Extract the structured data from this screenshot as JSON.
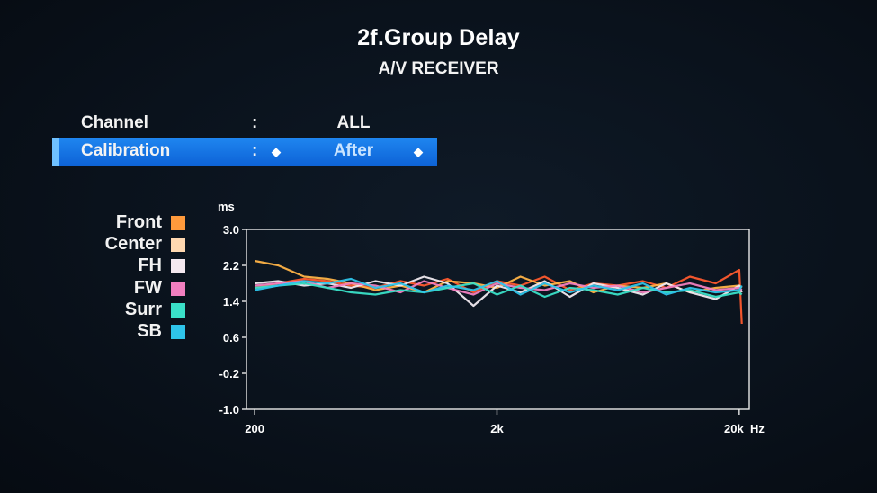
{
  "header": {
    "title": "2f.Group Delay",
    "subtitle": "A/V RECEIVER"
  },
  "settings": [
    {
      "label": "Channel",
      "colon": ":",
      "value": "ALL"
    },
    {
      "label": "Calibration",
      "colon": ":",
      "value": "After",
      "selected": true
    }
  ],
  "legend": [
    {
      "name": "Front",
      "color": "#ff9a3c"
    },
    {
      "name": "Center",
      "color": "#ffd8b0"
    },
    {
      "name": "FH",
      "color": "#f4e8ef"
    },
    {
      "name": "FW",
      "color": "#f27fc0"
    },
    {
      "name": "Surr",
      "color": "#3ae0c8"
    },
    {
      "name": "SB",
      "color": "#2ec4ea"
    }
  ],
  "chart_data": {
    "type": "line",
    "ylabel": "ms",
    "xunit": "Hz",
    "yticks": [
      "3.0",
      "2.2",
      "1.4",
      "0.6",
      "-0.2",
      "-1.0"
    ],
    "ylim": [
      -1.0,
      3.0
    ],
    "xticks": [
      "200",
      "2k",
      "20k"
    ],
    "xscale": "log",
    "xlim": [
      185,
      22000
    ],
    "x": [
      200,
      250,
      320,
      400,
      500,
      630,
      800,
      1000,
      1250,
      1600,
      2000,
      2500,
      3150,
      4000,
      5000,
      6300,
      8000,
      10000,
      12500,
      16000,
      20000,
      20500
    ],
    "series": [
      {
        "name": "Front",
        "color": "#ff5a2e",
        "values": [
          1.7,
          1.8,
          1.9,
          1.85,
          1.75,
          1.7,
          1.85,
          1.75,
          1.9,
          1.6,
          1.85,
          1.75,
          1.95,
          1.65,
          1.8,
          1.75,
          1.85,
          1.7,
          1.95,
          1.8,
          2.1,
          0.9
        ]
      },
      {
        "name": "Center",
        "color": "#ffb347",
        "values": [
          2.3,
          2.2,
          1.95,
          1.9,
          1.8,
          1.65,
          1.75,
          1.6,
          1.85,
          1.8,
          1.7,
          1.95,
          1.75,
          1.85,
          1.6,
          1.75,
          1.7,
          1.8,
          1.6,
          1.7,
          1.75,
          1.7
        ]
      },
      {
        "name": "FH",
        "color": "#f0eaf0",
        "values": [
          1.8,
          1.85,
          1.75,
          1.8,
          1.7,
          1.85,
          1.75,
          1.95,
          1.8,
          1.3,
          1.75,
          1.6,
          1.85,
          1.5,
          1.8,
          1.7,
          1.55,
          1.8,
          1.6,
          1.45,
          1.75,
          1.6
        ]
      },
      {
        "name": "FW",
        "color": "#f27fc0",
        "values": [
          1.75,
          1.8,
          1.85,
          1.7,
          1.8,
          1.75,
          1.6,
          1.85,
          1.7,
          1.55,
          1.8,
          1.7,
          1.65,
          1.8,
          1.7,
          1.75,
          1.6,
          1.7,
          1.8,
          1.65,
          1.7,
          1.65
        ]
      },
      {
        "name": "Surr",
        "color": "#3ae0c8",
        "values": [
          1.7,
          1.75,
          1.8,
          1.7,
          1.6,
          1.55,
          1.65,
          1.6,
          1.7,
          1.8,
          1.55,
          1.75,
          1.5,
          1.7,
          1.65,
          1.55,
          1.7,
          1.6,
          1.65,
          1.5,
          1.6,
          1.55
        ]
      },
      {
        "name": "SB",
        "color": "#2ec4ea",
        "values": [
          1.65,
          1.75,
          1.85,
          1.8,
          1.9,
          1.7,
          1.8,
          1.6,
          1.75,
          1.65,
          1.85,
          1.55,
          1.8,
          1.6,
          1.75,
          1.65,
          1.8,
          1.55,
          1.7,
          1.6,
          1.65,
          1.75
        ]
      }
    ]
  }
}
